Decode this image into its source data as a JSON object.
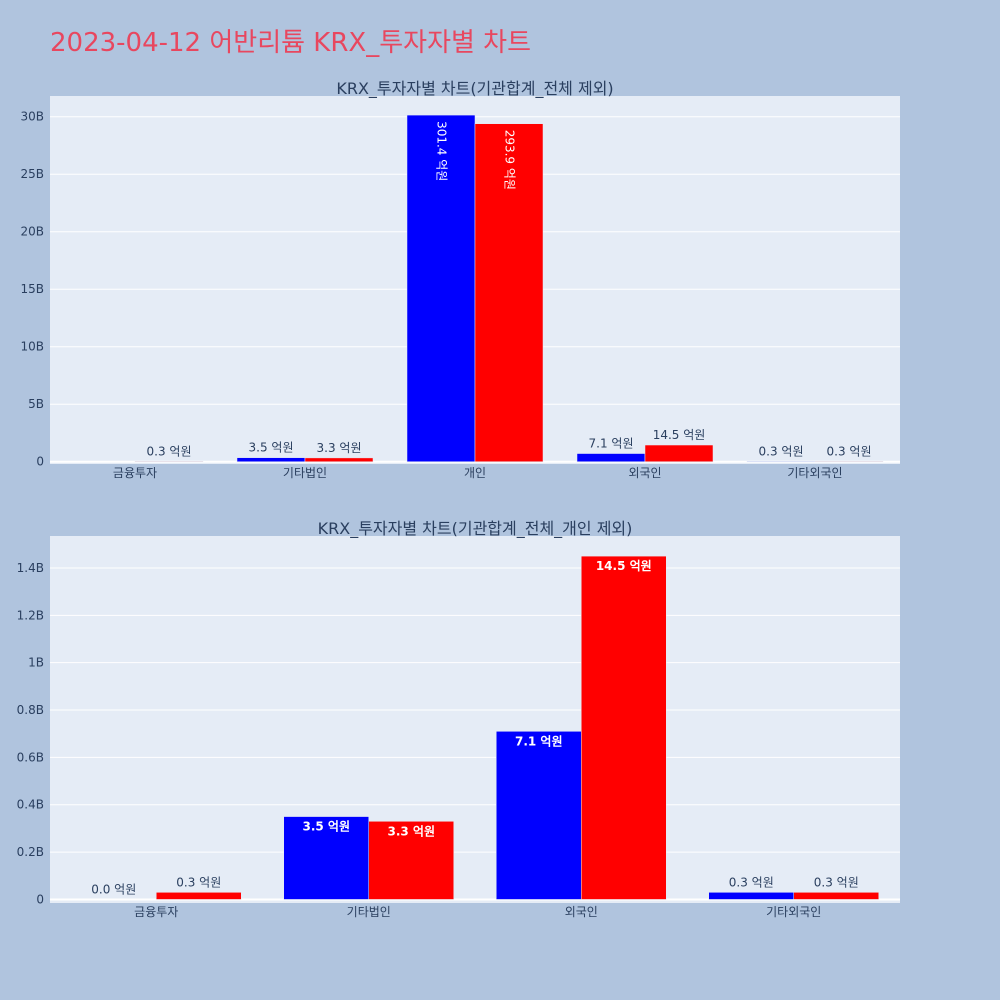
{
  "page": {
    "title": "2023-04-12 어반리튬 KRX_투자자별 차트"
  },
  "chart_data": [
    {
      "type": "bar",
      "title": "KRX_투자자별 차트(기관합계_전체 제외)",
      "categories": [
        "금융투자",
        "기타법인",
        "개인",
        "외국인",
        "기타외국인"
      ],
      "series": [
        {
          "color": "#0000ff",
          "values": [
            0,
            350000000,
            30140000000,
            710000000,
            30000000
          ],
          "labels": [
            "",
            "3.5 억원",
            "301.4 억원",
            "7.1 억원",
            "0.3 억원"
          ]
        },
        {
          "color": "#ff0000",
          "values": [
            30000000,
            330000000,
            29390000000,
            1450000000,
            30000000
          ],
          "labels": [
            "0.3 억원",
            "3.3 억원",
            "293.9 억원",
            "14.5 억원",
            "0.3 억원"
          ]
        }
      ],
      "yticks": [
        0,
        5000000000,
        10000000000,
        15000000000,
        20000000000,
        25000000000,
        30000000000
      ],
      "yticklabels": [
        "0",
        "5B",
        "10B",
        "15B",
        "20B",
        "25B",
        "30B"
      ],
      "ylim": [
        -200000000,
        31800000000
      ],
      "grid": true
    },
    {
      "type": "bar",
      "title": "KRX_투자자별 차트(기관합계_전체_개인 제외)",
      "categories": [
        "금융투자",
        "기타법인",
        "외국인",
        "기타외국인"
      ],
      "series": [
        {
          "color": "#0000ff",
          "values": [
            0,
            350000000,
            710000000,
            30000000
          ],
          "labels": [
            "0.0 억원",
            "3.5 억원",
            "7.1 억원",
            "0.3 억원"
          ]
        },
        {
          "color": "#ff0000",
          "values": [
            30000000,
            330000000,
            1450000000,
            30000000
          ],
          "labels": [
            "0.3 억원",
            "3.3 억원",
            "14.5 억원",
            "0.3 억원"
          ]
        }
      ],
      "yticks": [
        0,
        200000000,
        400000000,
        600000000,
        800000000,
        1000000000,
        1200000000,
        1400000000
      ],
      "yticklabels": [
        "0",
        "0.2B",
        "0.4B",
        "0.6B",
        "0.8B",
        "1B",
        "1.2B",
        "1.4B"
      ],
      "ylim": [
        -15000000,
        1535000000
      ],
      "grid": true
    }
  ]
}
